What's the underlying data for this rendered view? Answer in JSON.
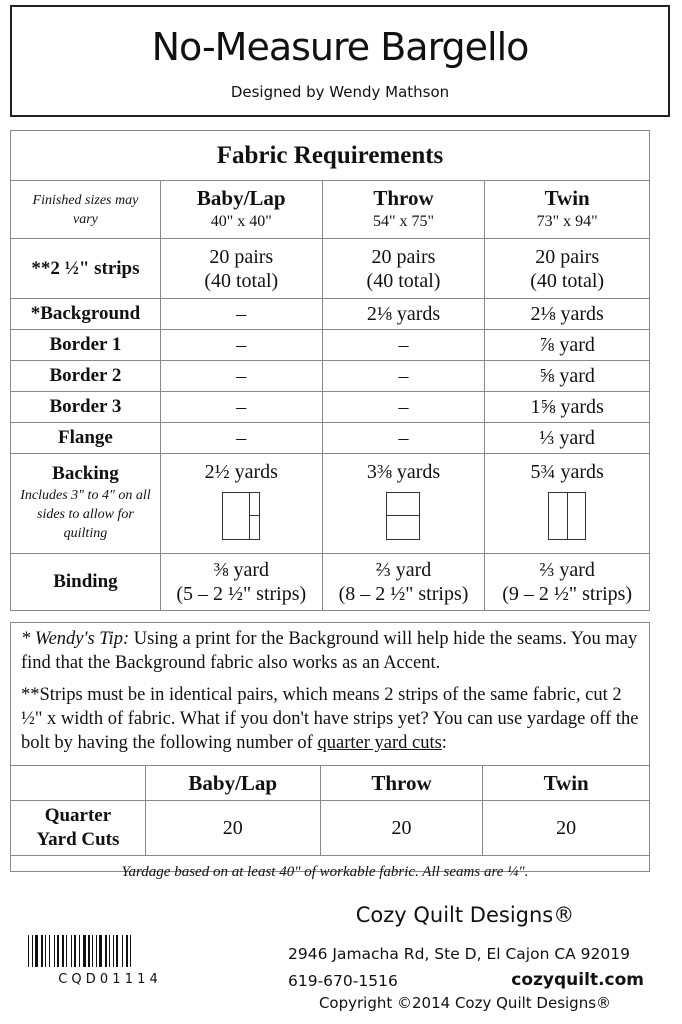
{
  "header": {
    "title": "No-Measure Bargello",
    "subtitle": "Designed by Wendy Mathson"
  },
  "requirements": {
    "title": "Fabric Requirements",
    "note": "Finished sizes may vary",
    "columns": [
      {
        "name": "Baby/Lap",
        "size": "40\" x 40\""
      },
      {
        "name": "Throw",
        "size": "54\" x 75\""
      },
      {
        "name": "Twin",
        "size": "73\" x 94\""
      }
    ],
    "strips": {
      "label": "**2 ½\" strips",
      "values": [
        [
          "20 pairs",
          "(40 total)"
        ],
        [
          "20 pairs",
          "(40 total)"
        ],
        [
          "20 pairs",
          "(40 total)"
        ]
      ]
    },
    "rows": [
      {
        "label": "*Background",
        "values": [
          "–",
          "2⅛ yards",
          "2⅛ yards"
        ]
      },
      {
        "label": "Border 1",
        "values": [
          "–",
          "–",
          "⅞ yard"
        ]
      },
      {
        "label": "Border 2",
        "values": [
          "–",
          "–",
          "⅝ yard"
        ]
      },
      {
        "label": "Border 3",
        "values": [
          "–",
          "–",
          "1⅝ yards"
        ]
      },
      {
        "label": "Flange",
        "values": [
          "–",
          "–",
          "⅓ yard"
        ]
      }
    ],
    "backing": {
      "label": "Backing",
      "note": "Includes 3\" to 4\" on all sides to allow for quilting",
      "values": [
        "2½ yards",
        "3⅜ yards",
        "5¾ yards"
      ],
      "diagram-icons": [
        "vertical-seam-with-split-panel",
        "horizontal-seam",
        "vertical-center-seam"
      ]
    },
    "binding": {
      "label": "Binding",
      "values": [
        [
          "⅜ yard",
          "(5 – 2 ½\" strips)"
        ],
        [
          "⅔ yard",
          "(8 – 2 ½\" strips)"
        ],
        [
          "⅔ yard",
          "(9 – 2 ½\" strips)"
        ]
      ]
    }
  },
  "tip": {
    "tip_prefix": "* Wendy's Tip:",
    "tip_text": " Using a print for the Background will help hide the seams. You may find that the Background fabric also works as an Accent.",
    "strips_text": "**Strips must be in identical pairs, which means 2 strips of the same fabric, cut 2 ½\" x width of fabric. What if you don't  have strips yet? You can use yardage off the bolt by having the following number of ",
    "strips_link": "quarter yard cuts",
    "strips_end": ":",
    "columns": [
      "Baby/Lap",
      "Throw",
      "Twin"
    ],
    "row_label": "Quarter Yard Cuts",
    "values": [
      "20",
      "20",
      "20"
    ]
  },
  "footnote": "Yardage based on at least 40\" of workable fabric.  All seams are ¼\".",
  "footer": {
    "company": "Cozy Quilt Designs®",
    "address": "2946 Jamacha Rd, Ste D, El Cajon CA 92019",
    "phone": "619-670-1516",
    "website": "cozyquilt.com",
    "copyright": "Copyright ©2014 Cozy Quilt Designs®",
    "sku": "C Q D 0 1 1 1 4"
  }
}
